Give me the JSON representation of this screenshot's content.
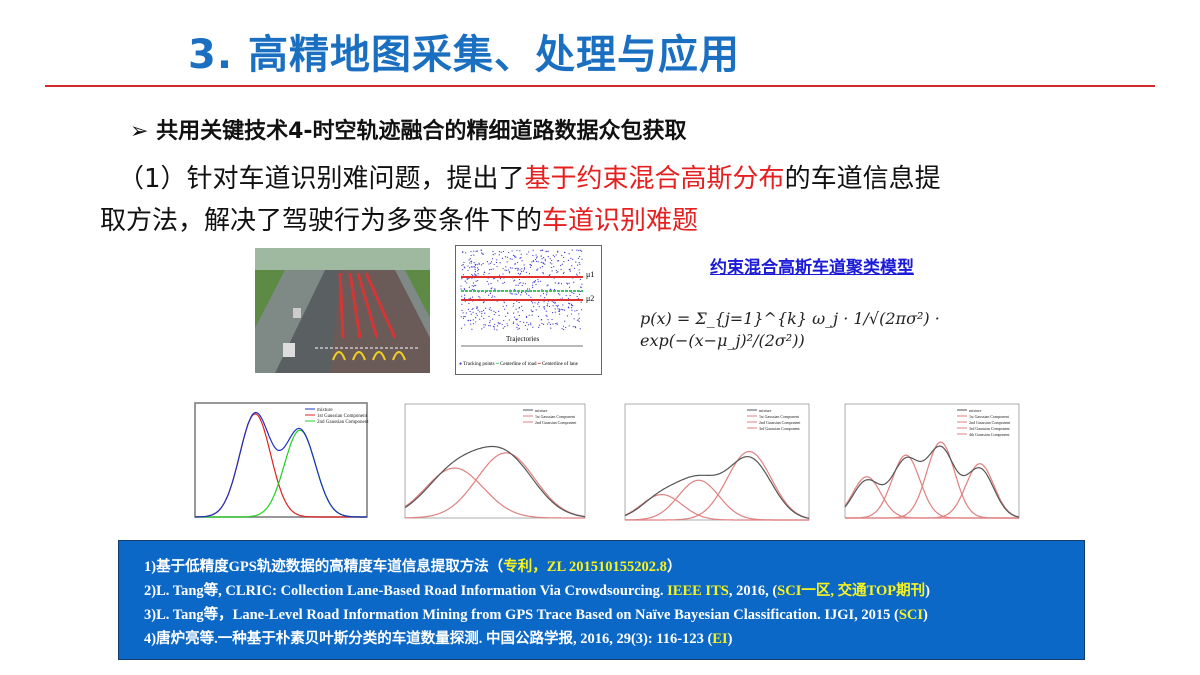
{
  "title": "3. 高精地图采集、处理与应用",
  "bullet": {
    "marker": "➢",
    "text": "共用关键技术4-时空轨迹融合的精细道路数据众包获取"
  },
  "paragraph": {
    "p1_a": "（1）针对车道识别难问题，提出了",
    "p1_red": "基于约束混合高斯分布",
    "p1_b": "的车道信息提",
    "p2_a": "取方法，解决了驾驶行为多变条件下的",
    "p2_red": "车道识别难题"
  },
  "trajectory_figure": {
    "mu1": "μ1",
    "mu2": "μ2",
    "axis_label": "Trajectories",
    "legend": [
      "Tracking points",
      "Centerline of road",
      "Centerline of lane"
    ],
    "colors": {
      "points": "#3a3ad0",
      "road": "#3cc860",
      "lane": "#e03030"
    }
  },
  "model": {
    "title": "约束混合高斯车道聚类模型",
    "formula": "p(x) = Σ_{j=1}^{k} ω_j · 1/√(2πσ²) · exp(−(x−μ_j)²/(2σ²))"
  },
  "charts": [
    {
      "legend": [
        "mixture",
        "1st Gaussian Component",
        "2nd Gaussian Component"
      ],
      "colors": [
        "#2030c0",
        "#e02020",
        "#20d020"
      ],
      "components": [
        {
          "mean": -3,
          "sd": 1.8,
          "peak": 0.95
        },
        {
          "mean": 2.2,
          "sd": 1.8,
          "peak": 0.8
        }
      ]
    },
    {
      "legend": [
        "mixture",
        "1st Gaussian Component",
        "2nd Gaussian Component"
      ],
      "colors": [
        "#555555",
        "#e08080",
        "#e08080"
      ],
      "components": [
        {
          "mean": -4.5,
          "sd": 3.2,
          "peak": 0.46
        },
        {
          "mean": 1.2,
          "sd": 3.2,
          "peak": 0.6
        }
      ]
    },
    {
      "legend": [
        "mixture",
        "1st Gaussian Component",
        "2nd Gaussian Component",
        "3rd Gaussian Component"
      ],
      "colors": [
        "#555555",
        "#e08080",
        "#e08080",
        "#e08080"
      ],
      "components": [
        {
          "mean": -6,
          "sd": 2.2,
          "peak": 0.23
        },
        {
          "mean": -2,
          "sd": 2.2,
          "peak": 0.36
        },
        {
          "mean": 3.5,
          "sd": 2.4,
          "peak": 0.62
        }
      ]
    },
    {
      "legend": [
        "mixture",
        "1st Gaussian Component",
        "2nd Gaussian Component",
        "3rd Gaussian Component",
        "4th Gaussian Component"
      ],
      "colors": [
        "#555555",
        "#e08080",
        "#e08080",
        "#e08080",
        "#e08080"
      ],
      "components": [
        {
          "mean": -7.5,
          "sd": 1.6,
          "peak": 0.38
        },
        {
          "mean": -3,
          "sd": 1.6,
          "peak": 0.58
        },
        {
          "mean": 1,
          "sd": 1.6,
          "peak": 0.7
        },
        {
          "mean": 5.5,
          "sd": 1.6,
          "peak": 0.5
        }
      ]
    }
  ],
  "references": [
    {
      "a": "1)基于低精度GPS轨迹数据的高精度车道信息提取方法（",
      "y": "专利，ZL 201510155202.8",
      "b": "）"
    },
    {
      "a": "2)L. Tang等, CLRIC: Collection Lane-Based Road Information Via Crowdsourcing. ",
      "y": "IEEE ITS",
      "b": ", 2016, (",
      "y2": "SCI一区, 交通TOP期刊",
      "c": ")"
    },
    {
      "a": "3)L. Tang等，Lane-Level Road Information Mining from GPS Trace Based on Naïve Bayesian Classification. IJGI, 2015 (",
      "y": "SCI",
      "b": ")"
    },
    {
      "a": "4)唐炉亮等.一种基于朴素贝叶斯分类的车道数量探测. 中国公路学报, 2016, 29(3): 116-123 (",
      "y": "EI",
      "b": ")"
    }
  ]
}
